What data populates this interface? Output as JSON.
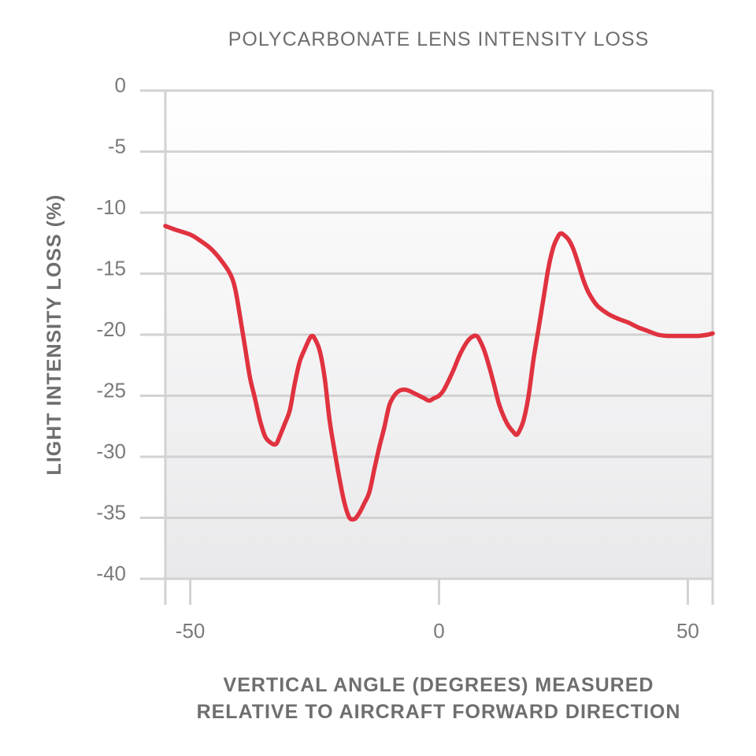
{
  "chart_data": {
    "type": "line",
    "title": "POLYCARBONATE LENS INTENSITY LOSS",
    "xlabel_lines": [
      "VERTICAL ANGLE (DEGREES) MEASURED",
      "RELATIVE TO AIRCRAFT FORWARD DIRECTION"
    ],
    "ylabel": "LIGHT INTENSITY LOSS (%)",
    "xlim": [
      -55,
      55
    ],
    "ylim": [
      -40,
      0
    ],
    "x_ticks": [
      -50,
      0,
      50
    ],
    "y_ticks": [
      0,
      -5,
      -10,
      -15,
      -20,
      -25,
      -30,
      -35,
      -40
    ],
    "grid": true,
    "line_color": "#e0323f",
    "series": [
      {
        "x": [
          -55,
          -53,
          -50,
          -48,
          -46,
          -44,
          -42,
          -41,
          -40,
          -39,
          -38,
          -37,
          -36,
          -35,
          -34,
          -33,
          -32.5,
          -32,
          -31,
          -30,
          -29,
          -28,
          -27,
          -26,
          -25.5,
          -25,
          -24,
          -23,
          -22,
          -21,
          -20,
          -19,
          -18,
          -17,
          -16.5,
          -16,
          -15,
          -14,
          -13,
          -12,
          -11,
          -10,
          -9,
          -8,
          -7,
          -6,
          -5,
          -4,
          -3,
          -2,
          -1,
          0,
          1,
          2,
          3,
          4,
          5,
          6,
          7,
          7.5,
          8,
          9,
          10,
          11,
          12,
          13,
          14,
          15,
          15.5,
          16,
          17,
          18,
          19,
          20,
          21,
          22,
          23,
          24,
          24.5,
          25,
          26,
          27,
          28,
          29,
          30,
          31,
          32,
          34,
          36,
          38,
          40,
          42,
          44,
          46,
          48,
          50,
          52,
          54,
          55
        ],
        "y": [
          -11.1,
          -11.4,
          -11.8,
          -12.3,
          -12.9,
          -13.8,
          -15.0,
          -16.2,
          -18.5,
          -21.0,
          -23.5,
          -25.2,
          -27.0,
          -28.3,
          -28.8,
          -29.0,
          -28.8,
          -28.3,
          -27.3,
          -26.2,
          -24.0,
          -22.2,
          -21.2,
          -20.3,
          -20.1,
          -20.3,
          -21.3,
          -23.5,
          -27.0,
          -29.5,
          -31.8,
          -33.8,
          -35.0,
          -35.1,
          -34.9,
          -34.6,
          -33.8,
          -32.9,
          -31.0,
          -29.2,
          -27.6,
          -25.8,
          -25.0,
          -24.6,
          -24.5,
          -24.6,
          -24.8,
          -25.0,
          -25.2,
          -25.4,
          -25.2,
          -25.0,
          -24.5,
          -23.7,
          -22.8,
          -21.8,
          -21.0,
          -20.4,
          -20.1,
          -20.1,
          -20.3,
          -21.2,
          -22.5,
          -24.0,
          -25.6,
          -26.7,
          -27.5,
          -28.0,
          -28.2,
          -28.0,
          -27.0,
          -25.0,
          -22.0,
          -19.5,
          -17.0,
          -14.5,
          -12.8,
          -11.9,
          -11.7,
          -11.8,
          -12.2,
          -13.0,
          -14.2,
          -15.5,
          -16.5,
          -17.2,
          -17.7,
          -18.3,
          -18.7,
          -19.0,
          -19.4,
          -19.7,
          -20.0,
          -20.1,
          -20.1,
          -20.1,
          -20.1,
          -20.0,
          -19.9
        ]
      }
    ]
  }
}
